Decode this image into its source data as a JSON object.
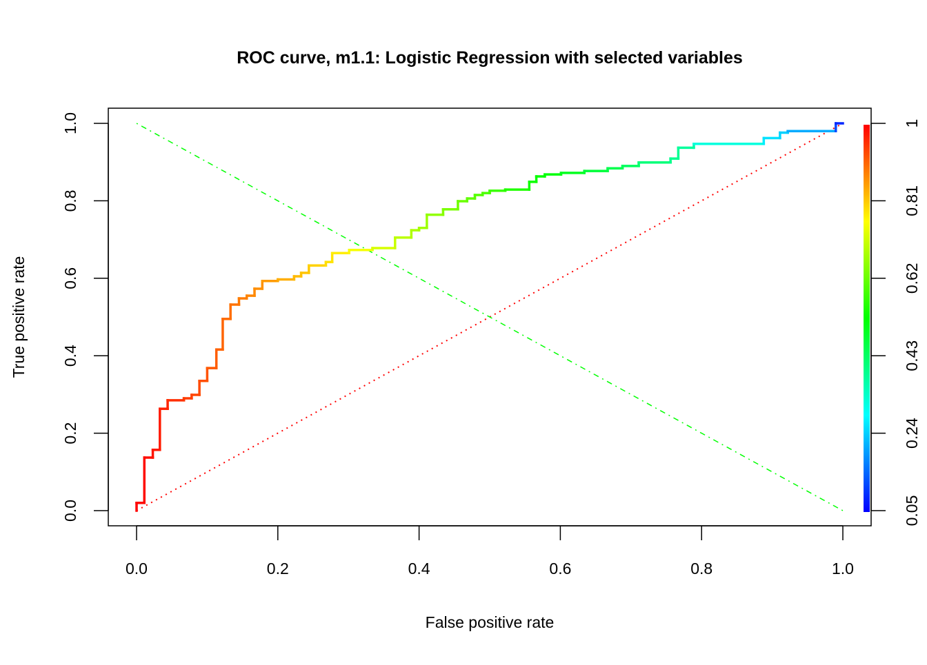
{
  "chart_data": {
    "type": "line",
    "title": "ROC curve, m1.1: Logistic Regression with selected variables",
    "xlabel": "False positive rate",
    "ylabel": "True positive rate",
    "xlim": [
      0,
      1
    ],
    "ylim": [
      0,
      1
    ],
    "x_ticks": [
      "0.0",
      "0.2",
      "0.4",
      "0.6",
      "0.8",
      "1.0"
    ],
    "y_ticks": [
      "0.0",
      "0.2",
      "0.4",
      "0.6",
      "0.8",
      "1.0"
    ],
    "colorbar": {
      "label_ticks": [
        "0.05",
        "0.24",
        "0.43",
        "0.62",
        "0.81",
        "1"
      ],
      "range": [
        0.05,
        1
      ],
      "colors": [
        "#0000ff",
        "#00ffff",
        "#00ff00",
        "#ffff00",
        "#ff0000"
      ]
    },
    "grid": false,
    "series": [
      {
        "name": "ROC",
        "style": "step, colored by cutoff (rainbow)",
        "points": [
          [
            0,
            0
          ],
          [
            0,
            0.02
          ],
          [
            0.011,
            0.02
          ],
          [
            0.011,
            0.137
          ],
          [
            0.023,
            0.137
          ],
          [
            0.023,
            0.157
          ],
          [
            0.033,
            0.157
          ],
          [
            0.033,
            0.263
          ],
          [
            0.044,
            0.263
          ],
          [
            0.044,
            0.285
          ],
          [
            0.067,
            0.285
          ],
          [
            0.067,
            0.29
          ],
          [
            0.078,
            0.29
          ],
          [
            0.078,
            0.299
          ],
          [
            0.089,
            0.299
          ],
          [
            0.089,
            0.335
          ],
          [
            0.1,
            0.335
          ],
          [
            0.1,
            0.368
          ],
          [
            0.113,
            0.368
          ],
          [
            0.113,
            0.416
          ],
          [
            0.122,
            0.416
          ],
          [
            0.122,
            0.495
          ],
          [
            0.133,
            0.495
          ],
          [
            0.133,
            0.532
          ],
          [
            0.145,
            0.532
          ],
          [
            0.145,
            0.548
          ],
          [
            0.156,
            0.548
          ],
          [
            0.156,
            0.555
          ],
          [
            0.167,
            0.555
          ],
          [
            0.167,
            0.573
          ],
          [
            0.178,
            0.573
          ],
          [
            0.178,
            0.593
          ],
          [
            0.2,
            0.593
          ],
          [
            0.2,
            0.597
          ],
          [
            0.223,
            0.597
          ],
          [
            0.223,
            0.605
          ],
          [
            0.233,
            0.605
          ],
          [
            0.233,
            0.614
          ],
          [
            0.244,
            0.614
          ],
          [
            0.244,
            0.633
          ],
          [
            0.268,
            0.633
          ],
          [
            0.268,
            0.642
          ],
          [
            0.277,
            0.642
          ],
          [
            0.277,
            0.665
          ],
          [
            0.301,
            0.665
          ],
          [
            0.301,
            0.673
          ],
          [
            0.334,
            0.673
          ],
          [
            0.334,
            0.678
          ],
          [
            0.366,
            0.678
          ],
          [
            0.366,
            0.705
          ],
          [
            0.389,
            0.705
          ],
          [
            0.389,
            0.724
          ],
          [
            0.4,
            0.724
          ],
          [
            0.4,
            0.73
          ],
          [
            0.411,
            0.73
          ],
          [
            0.411,
            0.764
          ],
          [
            0.434,
            0.764
          ],
          [
            0.434,
            0.778
          ],
          [
            0.455,
            0.778
          ],
          [
            0.455,
            0.799
          ],
          [
            0.468,
            0.799
          ],
          [
            0.468,
            0.806
          ],
          [
            0.479,
            0.806
          ],
          [
            0.479,
            0.815
          ],
          [
            0.49,
            0.815
          ],
          [
            0.49,
            0.82
          ],
          [
            0.5,
            0.82
          ],
          [
            0.5,
            0.826
          ],
          [
            0.522,
            0.826
          ],
          [
            0.522,
            0.829
          ],
          [
            0.556,
            0.829
          ],
          [
            0.556,
            0.849
          ],
          [
            0.566,
            0.849
          ],
          [
            0.566,
            0.863
          ],
          [
            0.578,
            0.863
          ],
          [
            0.578,
            0.868
          ],
          [
            0.601,
            0.868
          ],
          [
            0.601,
            0.872
          ],
          [
            0.634,
            0.872
          ],
          [
            0.634,
            0.877
          ],
          [
            0.667,
            0.877
          ],
          [
            0.667,
            0.884
          ],
          [
            0.688,
            0.884
          ],
          [
            0.688,
            0.89
          ],
          [
            0.711,
            0.89
          ],
          [
            0.711,
            0.899
          ],
          [
            0.756,
            0.899
          ],
          [
            0.756,
            0.909
          ],
          [
            0.767,
            0.909
          ],
          [
            0.767,
            0.937
          ],
          [
            0.789,
            0.937
          ],
          [
            0.789,
            0.947
          ],
          [
            0.888,
            0.947
          ],
          [
            0.888,
            0.962
          ],
          [
            0.911,
            0.962
          ],
          [
            0.911,
            0.976
          ],
          [
            0.922,
            0.976
          ],
          [
            0.922,
            0.98
          ],
          [
            0.99,
            0.98
          ],
          [
            0.99,
            1
          ],
          [
            1,
            1
          ]
        ]
      },
      {
        "name": "random diagonal",
        "style": "dotted",
        "color": "#ff0000",
        "points": [
          [
            0,
            0
          ],
          [
            1,
            1
          ]
        ]
      },
      {
        "name": "anti-diagonal",
        "style": "dot-dash",
        "color": "#00ff00",
        "points": [
          [
            0,
            1
          ],
          [
            1,
            0
          ]
        ]
      }
    ]
  }
}
